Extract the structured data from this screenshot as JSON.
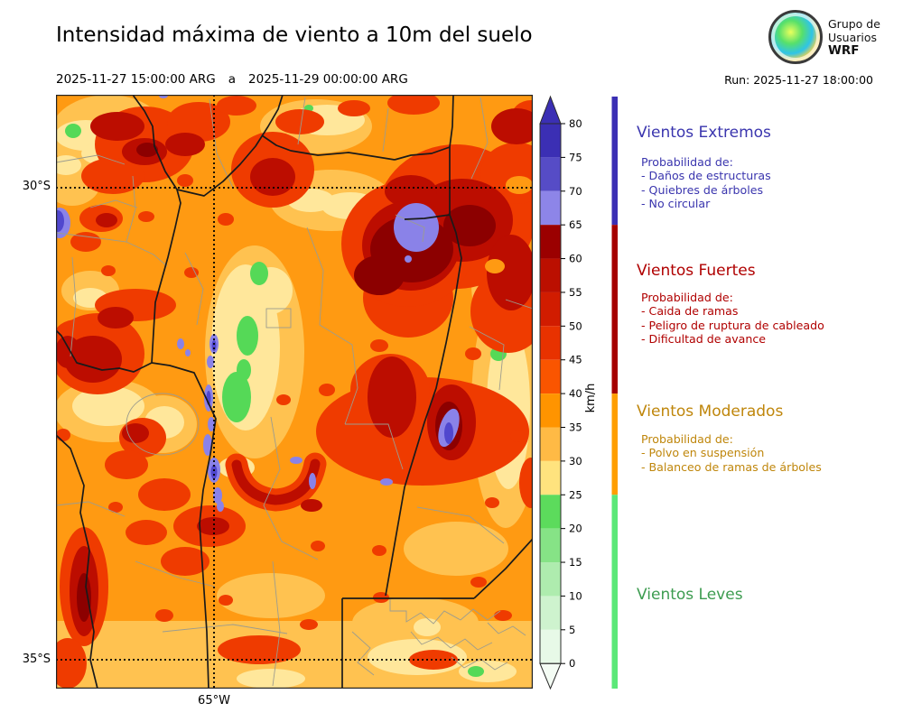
{
  "header": {
    "title": "Intensidad máxima de viento a 10m del suelo",
    "period_start": "2025-11-27 15:00:00 ARG",
    "period_sep": "a",
    "period_end": "2025-11-29 00:00:00 ARG",
    "run_label": "Run: 2025-11-27 18:00:00",
    "logo": {
      "line1": "Grupo de",
      "line2": "Usuarios",
      "line3": "WRF"
    }
  },
  "map": {
    "lat_top": "30°S",
    "lat_bottom": "35°S",
    "lon": "65°W"
  },
  "colorbar": {
    "unit": "km/h",
    "ticks": [
      80,
      75,
      70,
      65,
      60,
      55,
      50,
      45,
      40,
      35,
      30,
      25,
      20,
      15,
      10,
      5,
      0
    ],
    "segments": [
      {
        "from": 75,
        "to": 80,
        "color": "#3B2FB4"
      },
      {
        "from": 70,
        "to": 75,
        "color": "#564CC6"
      },
      {
        "from": 65,
        "to": 70,
        "color": "#8D85E8"
      },
      {
        "from": 60,
        "to": 65,
        "color": "#9B0000"
      },
      {
        "from": 55,
        "to": 60,
        "color": "#BB0F00"
      },
      {
        "from": 50,
        "to": 55,
        "color": "#D11C00"
      },
      {
        "from": 45,
        "to": 50,
        "color": "#E83200"
      },
      {
        "from": 40,
        "to": 45,
        "color": "#FA5500"
      },
      {
        "from": 35,
        "to": 40,
        "color": "#FF9400"
      },
      {
        "from": 30,
        "to": 35,
        "color": "#FFBA45"
      },
      {
        "from": 25,
        "to": 30,
        "color": "#FFE37E"
      },
      {
        "from": 20,
        "to": 25,
        "color": "#5CDB5C"
      },
      {
        "from": 15,
        "to": 20,
        "color": "#86E386"
      },
      {
        "from": 10,
        "to": 15,
        "color": "#AEECAE"
      },
      {
        "from": 5,
        "to": 10,
        "color": "#CEF3CE"
      },
      {
        "from": 0,
        "to": 5,
        "color": "#E7F9E7"
      }
    ],
    "arrow_top_color": "#3B2FB4",
    "arrow_bottom_color": "#F4FCF4"
  },
  "category_strip": {
    "segments": [
      {
        "name": "Vientos Extremos",
        "color": "#3B2FB4",
        "vmin": 65,
        "vmax": null
      },
      {
        "name": "Vientos Fuertes",
        "color": "#A50000",
        "vmin": 40,
        "vmax": 65
      },
      {
        "name": "Vientos Moderados",
        "color": "#FF9E00",
        "vmin": 25,
        "vmax": 40
      },
      {
        "name": "Vientos Leves",
        "color": "#5BE878",
        "vmin": null,
        "vmax": 25
      }
    ]
  },
  "legend": {
    "extremos": {
      "title": "Vientos Extremos",
      "color": "#3A35AE",
      "lines": [
        "Probabilidad de:",
        "- Daños de estructuras",
        "- Quiebres de árboles",
        "- No circular"
      ]
    },
    "fuertes": {
      "title": "Vientos Fuertes",
      "color": "#B00000",
      "lines": [
        "Probabilidad de:",
        "- Caida de ramas",
        "- Peligro de ruptura de cableado",
        "- Dificultad de avance"
      ]
    },
    "moderados": {
      "title": "Vientos Moderados",
      "color": "#BF860B",
      "lines": [
        "Probabilidad de:",
        "- Polvo en suspensión",
        "- Balanceo de ramas de árboles"
      ]
    },
    "leves": {
      "title": "Vientos Leves",
      "color": "#3D9C50"
    }
  }
}
